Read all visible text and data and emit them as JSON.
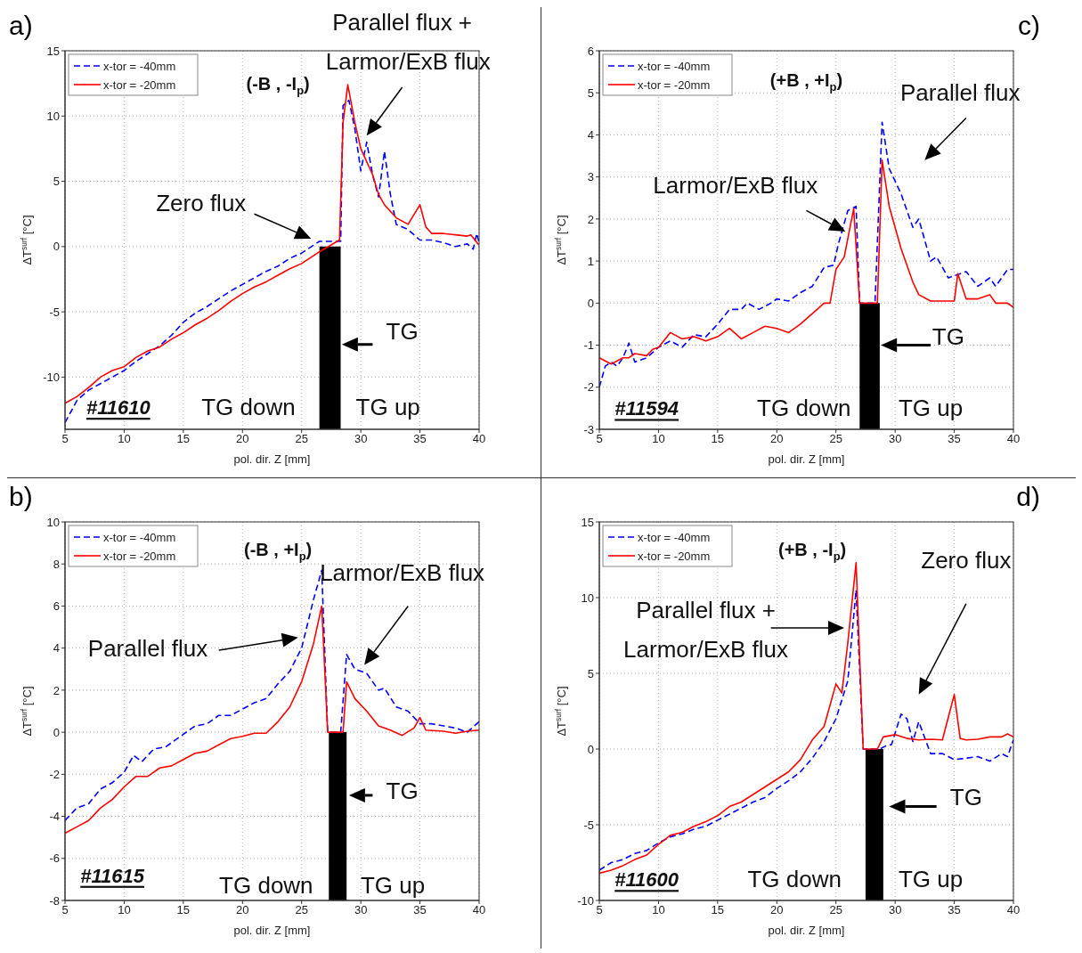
{
  "chart_data": [
    {
      "type": "line",
      "title": "a)",
      "xlabel": "pol. dir. Z [mm]",
      "ylabel": "ΔT$^{surf}$ [°C]",
      "xlim": [
        5,
        40
      ],
      "xticks": [
        5,
        10,
        15,
        20,
        25,
        30,
        35,
        40
      ],
      "ylim": [
        -14,
        15
      ],
      "yticks": [
        -10,
        -5,
        0,
        5,
        10,
        15
      ],
      "grid": true,
      "legend": "top left",
      "series": [
        {
          "name": "x-tor = -40mm",
          "color": "#0000ff",
          "line_style": "dashed",
          "x": [
            5,
            6,
            7,
            8,
            9,
            10,
            11,
            12,
            13,
            14,
            15,
            16,
            17,
            18,
            19,
            20,
            21,
            22,
            23,
            24,
            25,
            26,
            26.5,
            28.3,
            28.5,
            29,
            29.5,
            30,
            30.5,
            31,
            31.5,
            32,
            32.5,
            33,
            34,
            35,
            36,
            37,
            38,
            39,
            39.5,
            39.8,
            40
          ],
          "values": [
            -13.5,
            -11.8,
            -11,
            -10.5,
            -10,
            -9.5,
            -8.8,
            -8.2,
            -7.6,
            -6.8,
            -5.8,
            -5.1,
            -4.6,
            -4,
            -3.4,
            -2.9,
            -2.4,
            -1.9,
            -1.5,
            -0.9,
            -0.5,
            0.1,
            0.4,
            0.4,
            10.8,
            11.2,
            9,
            5.8,
            8,
            5.5,
            3.8,
            7.3,
            4,
            1.7,
            1.3,
            0.5,
            0.5,
            0.3,
            0,
            0.2,
            -0.2,
            1,
            0.3
          ]
        },
        {
          "name": "x-tor = -20mm",
          "color": "#ff0000",
          "line_style": "solid",
          "x": [
            5,
            6,
            7,
            8,
            9,
            10,
            11,
            12,
            13,
            14,
            15,
            16,
            17,
            18,
            19,
            20,
            21,
            22,
            23,
            24,
            25,
            26,
            26.5,
            28.2,
            28.5,
            28.9,
            29.5,
            30,
            31,
            31.5,
            32,
            33,
            34,
            35,
            35.5,
            36,
            37,
            38,
            39,
            39.3,
            40
          ],
          "values": [
            -12,
            -11.5,
            -10.8,
            -10,
            -9.5,
            -9.2,
            -8.5,
            -8,
            -7.7,
            -7.1,
            -6.6,
            -6,
            -5.5,
            -4.9,
            -4.2,
            -3.6,
            -3.1,
            -2.7,
            -2.2,
            -1.7,
            -1.3,
            -0.7,
            -0.4,
            0.5,
            9.5,
            12.4,
            9.5,
            7.5,
            5.5,
            4,
            3.2,
            2.2,
            1.7,
            3.2,
            1.5,
            1,
            1,
            0.9,
            0.8,
            0.9,
            0.1
          ]
        }
      ],
      "bands": [
        {
          "axis": "x",
          "from": 26.5,
          "to": 28.3,
          "color": "#000000"
        }
      ],
      "annotations": [
        "Parallel flux +",
        "Larmor/ExB flux",
        "Zero flux",
        "TG",
        "TG down",
        "TG up",
        "#11610",
        "(-B , -I$_{p}$)"
      ]
    },
    {
      "type": "line",
      "title": "c)",
      "xlabel": "pol. dir. Z [mm]",
      "ylabel": "ΔT$^{surf}$ [°C]",
      "xlim": [
        5,
        40
      ],
      "xticks": [
        5,
        10,
        15,
        20,
        25,
        30,
        35,
        40
      ],
      "ylim": [
        -3,
        6
      ],
      "yticks": [
        -3,
        -2,
        -1,
        0,
        1,
        2,
        3,
        4,
        5,
        6
      ],
      "grid": true,
      "legend": "top left",
      "series": [
        {
          "name": "x-tor = -40mm",
          "color": "#0000ff",
          "line_style": "dashed",
          "x": [
            5,
            5.5,
            6,
            6.5,
            7,
            7.5,
            8,
            9,
            10,
            11,
            12,
            13,
            14,
            15,
            16,
            17,
            17.5,
            18.5,
            19.5,
            20,
            21,
            22,
            23,
            24,
            24.8,
            25.2,
            26,
            26.7,
            27,
            28.3,
            28.9,
            29.5,
            30.5,
            31.5,
            32,
            33,
            33.5,
            34.5,
            35,
            36,
            37,
            38,
            38.5,
            39.5,
            40
          ],
          "values": [
            -2,
            -1.5,
            -1.4,
            -1.5,
            -1.3,
            -0.95,
            -1.4,
            -1.3,
            -1.05,
            -0.9,
            -1.05,
            -0.75,
            -0.8,
            -0.5,
            -0.15,
            -0.15,
            0,
            -0.15,
            0,
            0.1,
            0.05,
            0.25,
            0.4,
            0.85,
            0.9,
            1.4,
            2.2,
            2.3,
            0,
            0,
            4.3,
            3.2,
            2.6,
            1.8,
            2,
            1,
            1.1,
            0.6,
            0.65,
            0.75,
            0.4,
            0.6,
            0.4,
            0.8,
            0.8
          ]
        },
        {
          "name": "x-tor = -20mm",
          "color": "#ff0000",
          "line_style": "solid",
          "x": [
            5,
            6,
            7,
            7.5,
            8,
            9,
            9.5,
            10,
            11,
            12,
            13,
            14,
            15,
            16,
            17,
            18,
            19,
            20,
            21,
            22,
            23,
            24,
            24.5,
            25,
            25.7,
            26.5,
            27,
            28.5,
            28.9,
            29.5,
            30.5,
            31.5,
            32,
            33,
            35,
            35.3,
            36,
            37,
            38,
            38.5,
            39.5,
            40
          ],
          "values": [
            -1.3,
            -1.45,
            -1.3,
            -1.3,
            -1.2,
            -1.25,
            -1.1,
            -1.05,
            -0.7,
            -0.85,
            -0.8,
            -0.9,
            -0.8,
            -0.6,
            -0.85,
            -0.7,
            -0.55,
            -0.6,
            -0.7,
            -0.5,
            -0.25,
            0,
            0,
            0.8,
            1.1,
            2.25,
            0,
            0,
            3.4,
            2.3,
            1.3,
            0.5,
            0.2,
            0.05,
            0.05,
            0.7,
            0.1,
            0.1,
            0.2,
            0,
            0,
            -0.1
          ]
        }
      ],
      "bands": [
        {
          "axis": "x",
          "from": 27,
          "to": 28.7,
          "color": "#000000"
        }
      ],
      "annotations": [
        "Parallel flux",
        "Larmor/ExB flux",
        "TG",
        "TG down",
        "TG up",
        "#11594",
        "(+B , +I$_{p}$)"
      ]
    },
    {
      "type": "line",
      "title": "b)",
      "xlabel": "pol. dir. Z [mm]",
      "ylabel": "ΔT$^{surf}$ [°C]",
      "xlim": [
        5,
        40
      ],
      "xticks": [
        5,
        10,
        15,
        20,
        25,
        30,
        35,
        40
      ],
      "ylim": [
        -8,
        10
      ],
      "yticks": [
        -8,
        -6,
        -4,
        -2,
        0,
        2,
        4,
        6,
        8,
        10
      ],
      "grid": true,
      "legend": "top left",
      "series": [
        {
          "name": "x-tor = -40mm",
          "color": "#0000ff",
          "line_style": "dashed",
          "x": [
            5,
            6,
            7,
            8,
            9,
            10,
            10.8,
            11.5,
            12.5,
            13.5,
            15,
            16,
            17,
            18,
            19,
            20,
            21,
            22,
            23,
            24,
            25,
            26,
            26.7,
            27.2,
            28.3,
            28.8,
            29.5,
            30.5,
            31.5,
            32,
            33,
            34,
            35,
            36,
            37,
            38,
            39,
            40
          ],
          "values": [
            -4.2,
            -3.6,
            -3.4,
            -2.7,
            -2.4,
            -1.9,
            -1.1,
            -1.4,
            -0.8,
            -0.7,
            -0.1,
            0.3,
            0.4,
            0.8,
            0.8,
            1.1,
            1.4,
            1.6,
            2.3,
            2.9,
            4,
            6.3,
            7.7,
            0,
            0,
            3.7,
            3,
            2.8,
            2,
            2.1,
            1.2,
            1,
            0.4,
            0.4,
            0.3,
            0.2,
            0,
            0.5
          ]
        },
        {
          "name": "x-tor = -20mm",
          "color": "#ff0000",
          "line_style": "solid",
          "x": [
            5,
            6,
            7,
            8,
            9,
            10,
            11,
            12,
            13,
            14,
            15,
            16,
            17,
            18,
            19,
            20,
            21,
            22,
            23,
            24,
            25,
            26,
            26.7,
            27.2,
            28.5,
            28.8,
            29.5,
            30.5,
            31.5,
            32.5,
            33.5,
            34.5,
            35,
            35.5,
            37,
            38,
            39,
            40
          ],
          "values": [
            -4.8,
            -4.5,
            -4.2,
            -3.6,
            -3.2,
            -2.6,
            -2.1,
            -2.1,
            -1.7,
            -1.6,
            -1.3,
            -1,
            -0.9,
            -0.6,
            -0.3,
            -0.2,
            -0.05,
            -0.05,
            0.5,
            1.2,
            2.4,
            4.2,
            6,
            0,
            0,
            2.4,
            1.6,
            1,
            0.3,
            0.1,
            -0.15,
            0.2,
            0.7,
            0.1,
            0.05,
            -0.05,
            0.05,
            0.1
          ]
        }
      ],
      "bands": [
        {
          "axis": "x",
          "from": 27.3,
          "to": 28.8,
          "color": "#000000"
        }
      ],
      "annotations": [
        "Larmor/ExB flux",
        "Parallel flux",
        "TG",
        "TG down",
        "TG up",
        "#11615",
        "(-B , +I$_{p}$)"
      ]
    },
    {
      "type": "line",
      "title": "d)",
      "xlabel": "pol. dir. Z [mm]",
      "ylabel": "ΔT$^{surf}$ [°C]",
      "xlim": [
        5,
        40
      ],
      "xticks": [
        5,
        10,
        15,
        20,
        25,
        30,
        35,
        40
      ],
      "ylim": [
        -10,
        15
      ],
      "yticks": [
        -10,
        -5,
        0,
        5,
        10,
        15
      ],
      "grid": true,
      "legend": "top left",
      "series": [
        {
          "name": "x-tor = -40mm",
          "color": "#0000ff",
          "line_style": "dashed",
          "x": [
            5,
            6,
            7,
            8,
            9,
            10,
            11,
            12,
            13,
            14,
            15,
            16,
            17,
            18,
            19,
            20,
            21,
            22,
            23,
            24,
            25,
            26,
            26.7,
            27.3,
            28.7,
            29.2,
            29.7,
            30.5,
            31,
            31.5,
            32,
            33,
            34,
            35,
            36,
            37,
            38,
            39,
            39.5,
            40
          ],
          "values": [
            -8,
            -7.5,
            -7.3,
            -6.9,
            -6.7,
            -6.2,
            -5.8,
            -5.6,
            -5.3,
            -5.1,
            -4.7,
            -4.3,
            -3.9,
            -3.5,
            -3.2,
            -2.6,
            -2.1,
            -1.5,
            -0.6,
            0.5,
            2,
            4.5,
            10.5,
            0,
            0,
            0.2,
            0.3,
            2.3,
            2,
            0.5,
            1.8,
            -0.3,
            -0.3,
            -0.7,
            -0.6,
            -0.5,
            -0.8,
            -0.3,
            -0.5,
            0.6
          ]
        },
        {
          "name": "x-tor = -20mm",
          "color": "#ff0000",
          "line_style": "solid",
          "x": [
            5,
            6,
            7,
            8,
            9,
            10,
            11,
            12,
            13,
            14,
            15,
            16,
            17,
            18,
            19,
            20,
            21,
            22,
            23,
            24,
            25,
            25.5,
            26,
            26.7,
            27.3,
            28.5,
            29,
            30,
            31,
            32,
            33,
            34,
            35,
            35.5,
            36,
            37,
            38,
            39,
            39.5,
            40
          ],
          "values": [
            -8.2,
            -8,
            -7.7,
            -7.3,
            -7,
            -6.3,
            -5.7,
            -5.5,
            -5.1,
            -4.8,
            -4.4,
            -3.8,
            -3.5,
            -3,
            -2.5,
            -2,
            -1.5,
            -0.7,
            0.6,
            1.5,
            4.3,
            3.7,
            7,
            12.3,
            0,
            0,
            0.8,
            0.95,
            0.7,
            0.6,
            0.65,
            0.6,
            3.6,
            0.7,
            0.6,
            0.65,
            0.8,
            0.8,
            1,
            0.8
          ]
        }
      ],
      "bands": [
        {
          "axis": "x",
          "from": 27.5,
          "to": 29,
          "color": "#000000"
        }
      ],
      "annotations": [
        "Zero flux",
        "Parallel flux +",
        "Larmor/ExB flux",
        "TG",
        "TG down",
        "TG up",
        "#11600",
        "(+B , -I$_{p}$)"
      ]
    }
  ]
}
